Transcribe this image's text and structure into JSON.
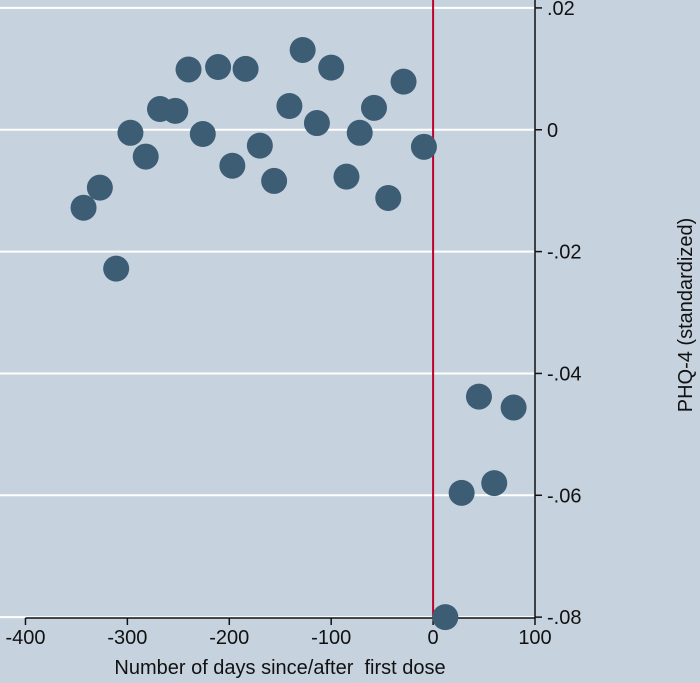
{
  "chart_data": {
    "type": "scatter",
    "x_label": "Number of days since/after  first dose",
    "y_label": "PHQ-4 (standardized)",
    "series": [
      {
        "name": "PHQ-4",
        "color": "#3d5d75",
        "x": [
          -343,
          -327,
          -311,
          -297,
          -282,
          -268,
          -253,
          -240,
          -226,
          -211,
          -197,
          -184,
          -170,
          -156,
          -141,
          -128,
          -114,
          -100,
          -85,
          -72,
          -58,
          -44,
          -29,
          -9,
          12,
          28,
          45,
          60,
          79
        ],
        "values": [
          -0.0128,
          -0.0095,
          -0.0228,
          -0.0005,
          -0.0044,
          0.0034,
          0.0031,
          0.0099,
          -0.0007,
          0.0103,
          -0.0059,
          0.01,
          -0.0026,
          -0.0084,
          0.0039,
          0.0131,
          0.0011,
          0.0102,
          -0.0077,
          -0.0005,
          0.0036,
          -0.0112,
          0.0079,
          -0.0028,
          -0.08,
          -0.0596,
          -0.0438,
          -0.058,
          -0.0456
        ]
      }
    ],
    "xlim": [
      -425,
      100
    ],
    "xticks": [
      -400,
      -300,
      -200,
      -100,
      0,
      100
    ],
    "ylim": [
      -0.0808,
      0.0213
    ],
    "yticks": [
      {
        "value": -0.08,
        "label": "-.08"
      },
      {
        "value": -0.06,
        "label": "-.06"
      },
      {
        "value": -0.04,
        "label": "-.04"
      },
      {
        "value": -0.02,
        "label": "-.02"
      },
      0,
      {
        "value": 0.02,
        "label": ".02"
      }
    ],
    "grid": true,
    "vline": 0,
    "vline_color": "#c0002b",
    "background": "#c6d3df"
  }
}
